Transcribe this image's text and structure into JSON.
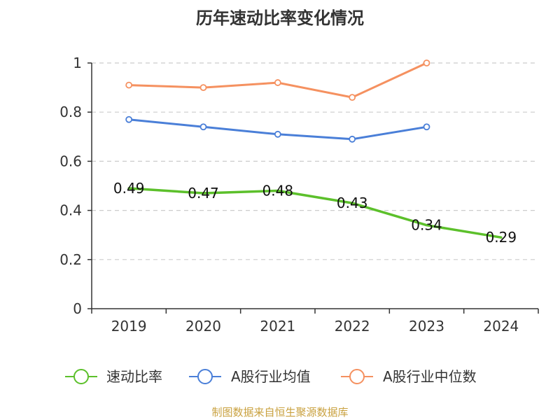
{
  "chart_data": {
    "type": "line",
    "title": "历年速动比率变化情况",
    "categories": [
      "2019",
      "2020",
      "2021",
      "2022",
      "2023",
      "2024"
    ],
    "ylim": [
      0,
      1
    ],
    "yticks": [
      "0",
      "0.2",
      "0.4",
      "0.6",
      "0.8",
      "1"
    ],
    "grid": true,
    "legend_position": "bottom",
    "series": [
      {
        "name": "速动比率",
        "color": "#5cc02b",
        "values": [
          0.49,
          0.47,
          0.48,
          0.43,
          0.34,
          0.29
        ],
        "labels": [
          "0.49",
          "0.47",
          "0.48",
          "0.43",
          "0.34",
          "0.29"
        ],
        "show_labels": true,
        "show_markers": false
      },
      {
        "name": "A股行业均值",
        "color": "#4a7fd8",
        "values": [
          0.77,
          0.74,
          0.71,
          0.69,
          0.74,
          null
        ],
        "show_labels": false,
        "show_markers": true
      },
      {
        "name": "A股行业中位数",
        "color": "#f59160",
        "values": [
          0.91,
          0.9,
          0.92,
          0.86,
          1.0,
          null
        ],
        "show_labels": false,
        "show_markers": true
      }
    ]
  },
  "source": "制图数据来自恒生聚源数据库"
}
